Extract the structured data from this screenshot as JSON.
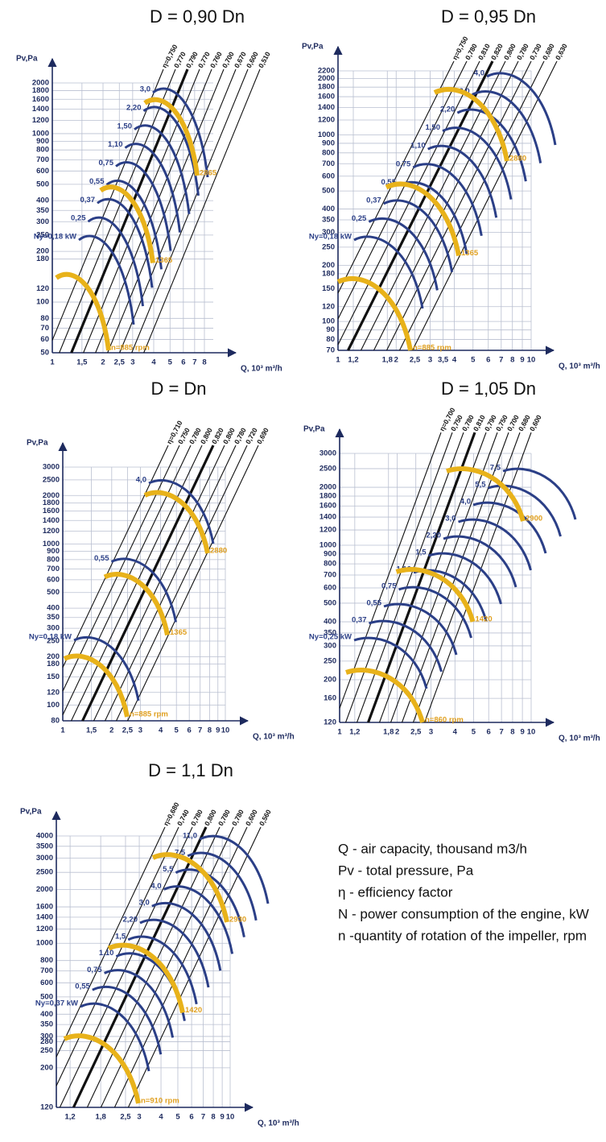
{
  "chart_data": [
    {
      "type": "performance",
      "title": "D = 0,90 Dn",
      "y_label": "Pv,Pa",
      "x_label": "Q, 10³ m³/h",
      "log_scale": true,
      "grid": true,
      "xlim": [
        1,
        8
      ],
      "ylim": [
        50,
        2000
      ],
      "xticks": [
        1,
        {
          "value": 1.5,
          "label": "1,5"
        },
        2,
        {
          "value": 2.5,
          "label": "2,5"
        },
        3,
        4,
        5,
        6,
        7,
        8
      ],
      "yticks": [
        50,
        60,
        70,
        80,
        100,
        120,
        180,
        200,
        250,
        300,
        350,
        400,
        500,
        600,
        700,
        800,
        900,
        1000,
        1200,
        1400,
        1600,
        1800,
        2000
      ],
      "efficiency": [
        {
          "value": 0.75,
          "label": "η=0,750"
        },
        {
          "value": 0.77,
          "label": "0,770"
        },
        {
          "value": 0.79,
          "label": "0,790"
        },
        {
          "value": 0.77,
          "label": "0,770"
        },
        {
          "value": 0.76,
          "label": "0,760"
        },
        {
          "value": 0.7,
          "label": "0,700"
        },
        {
          "value": 0.67,
          "label": "0,670"
        },
        {
          "value": 0.6,
          "label": "0,600"
        },
        {
          "value": 0.51,
          "label": "0,510"
        }
      ],
      "power": [
        "Ny=0,18 kW",
        "0,25",
        "0,37",
        "0,55",
        "0,75",
        "1,10",
        "1,50",
        "2,20",
        "3,0"
      ],
      "speed": [
        "n=885 rpm",
        "1365",
        "2865"
      ]
    },
    {
      "type": "performance",
      "title": "D = 0,95 Dn",
      "y_label": "Pv,Pa",
      "x_label": "Q, 10³ m³/h",
      "log_scale": true,
      "grid": true,
      "xlim": [
        1,
        10
      ],
      "ylim": [
        70,
        2200
      ],
      "xticks": [
        1,
        {
          "value": 1.2,
          "label": "1,2"
        },
        {
          "value": 1.8,
          "label": "1,8"
        },
        2,
        {
          "value": 2.5,
          "label": "2,5"
        },
        3,
        {
          "value": 3.5,
          "label": "3,5"
        },
        4,
        5,
        6,
        7,
        8,
        9,
        10
      ],
      "yticks": [
        70,
        80,
        90,
        100,
        120,
        150,
        180,
        200,
        250,
        300,
        350,
        400,
        500,
        600,
        700,
        800,
        900,
        1000,
        1200,
        1400,
        1600,
        1800,
        2000,
        2200
      ],
      "efficiency": [
        {
          "value": 0.75,
          "label": "η=0,750"
        },
        {
          "value": 0.78,
          "label": "0,780"
        },
        {
          "value": 0.81,
          "label": "0,810"
        },
        {
          "value": 0.82,
          "label": "0,820"
        },
        {
          "value": 0.8,
          "label": "0,800"
        },
        {
          "value": 0.78,
          "label": "0,780"
        },
        {
          "value": 0.73,
          "label": "0,730"
        },
        {
          "value": 0.68,
          "label": "0,680"
        },
        {
          "value": 0.63,
          "label": "0,630"
        }
      ],
      "power": [
        "Ny=0,18 kW",
        "0,25",
        "0,37",
        "0,55",
        "0,75",
        "1,10",
        "1,50",
        "2,20",
        "3,0",
        "4,0"
      ],
      "speed": [
        "n=885 rpm",
        "1365",
        "2880"
      ]
    },
    {
      "type": "performance",
      "title": "D = Dn",
      "y_label": "Pv,Pa",
      "x_label": "Q, 10³ m³/h",
      "log_scale": true,
      "grid": true,
      "xlim": [
        1,
        10
      ],
      "ylim": [
        80,
        3000
      ],
      "xticks": [
        1,
        {
          "value": 1.5,
          "label": "1,5"
        },
        2,
        {
          "value": 2.5,
          "label": "2,5"
        },
        3,
        4,
        5,
        6,
        7,
        8,
        9,
        10
      ],
      "yticks": [
        80,
        100,
        120,
        150,
        180,
        200,
        250,
        300,
        350,
        400,
        500,
        600,
        700,
        800,
        900,
        1000,
        1200,
        1400,
        1600,
        1800,
        2000,
        2500,
        3000
      ],
      "efficiency": [
        {
          "value": 0.71,
          "label": "η=0,710"
        },
        {
          "value": 0.75,
          "label": "0,750"
        },
        {
          "value": 0.78,
          "label": "0,780"
        },
        {
          "value": 0.8,
          "label": "0,800"
        },
        {
          "value": 0.82,
          "label": "0,820"
        },
        {
          "value": 0.8,
          "label": "0,800"
        },
        {
          "value": 0.78,
          "label": "0,780"
        },
        {
          "value": 0.72,
          "label": "0,720"
        },
        {
          "value": 0.69,
          "label": "0,690"
        }
      ],
      "power": [
        "Ny=0,18 kW",
        "0,55",
        "4,0"
      ],
      "speed": [
        "n=885 rpm",
        "1365",
        "2880"
      ]
    },
    {
      "type": "performance",
      "title": "D = 1,05 Dn",
      "y_label": "Pv,Pa",
      "x_label": "Q, 10³ m³/h",
      "log_scale": true,
      "grid": true,
      "xlim": [
        1,
        10
      ],
      "ylim": [
        120,
        3000
      ],
      "xticks": [
        1,
        {
          "value": 1.2,
          "label": "1,2"
        },
        {
          "value": 1.8,
          "label": "1,8"
        },
        2,
        {
          "value": 2.5,
          "label": "2,5"
        },
        3,
        4,
        5,
        6,
        7,
        8,
        9,
        10
      ],
      "yticks": [
        120,
        160,
        200,
        250,
        300,
        350,
        400,
        500,
        600,
        700,
        800,
        900,
        1000,
        1200,
        1400,
        1600,
        1800,
        2000,
        2500,
        3000
      ],
      "efficiency": [
        {
          "value": 0.7,
          "label": "η=0,700"
        },
        {
          "value": 0.75,
          "label": "0,750"
        },
        {
          "value": 0.78,
          "label": "0,780"
        },
        {
          "value": 0.81,
          "label": "0,810"
        },
        {
          "value": 0.79,
          "label": "0,790"
        },
        {
          "value": 0.75,
          "label": "0,750"
        },
        {
          "value": 0.7,
          "label": "0,700"
        },
        {
          "value": 0.68,
          "label": "0,680"
        },
        {
          "value": 0.6,
          "label": "0,600"
        }
      ],
      "power": [
        "Ny=0,25 kW",
        "0,37",
        "0,55",
        "0,75",
        "1,10",
        "1,5",
        "2,20",
        "3,0",
        "4,0",
        "5,5",
        "7,5"
      ],
      "speed": [
        "n=860 rpm",
        "1420",
        "2900"
      ]
    },
    {
      "type": "performance",
      "title": "D = 1,1 Dn",
      "y_label": "Pv,Pa",
      "x_label": "Q, 10³ m³/h",
      "log_scale": true,
      "grid": true,
      "xlim": [
        1,
        10
      ],
      "ylim": [
        120,
        4000
      ],
      "xticks": [
        {
          "value": 1.2,
          "label": "1,2"
        },
        {
          "value": 1.8,
          "label": "1,8"
        },
        {
          "value": 2.5,
          "label": "2,5"
        },
        3,
        4,
        5,
        6,
        7,
        8,
        9,
        10
      ],
      "yticks": [
        120,
        200,
        250,
        280,
        300,
        350,
        400,
        500,
        600,
        700,
        800,
        1000,
        1200,
        1400,
        1600,
        2000,
        2500,
        3000,
        3500,
        4000
      ],
      "efficiency": [
        {
          "value": 0.68,
          "label": "η=0,680"
        },
        {
          "value": 0.74,
          "label": "0,740"
        },
        {
          "value": 0.78,
          "label": "0,780"
        },
        {
          "value": 0.8,
          "label": "0,800"
        },
        {
          "value": 0.78,
          "label": "0,780"
        },
        {
          "value": 0.78,
          "label": "0,780"
        },
        {
          "value": 0.6,
          "label": "0,600"
        },
        {
          "value": 0.56,
          "label": "0,560"
        }
      ],
      "power": [
        "Ny=0,37 kW",
        "0,55",
        "0,75",
        "1,10",
        "1,5",
        "2,20",
        "3,0",
        "4,0",
        "5,5",
        "7,5",
        "11,0"
      ],
      "speed": [
        "n=910 rpm",
        "1420",
        "2930"
      ]
    }
  ],
  "legend": [
    "Q - air capacity, thousand m3/h",
    "Pv - total pressure, Pa",
    "η - efficiency factor",
    "N - power consumption of the engine, kW",
    "n -quantity of rotation of the impeller, rpm"
  ]
}
